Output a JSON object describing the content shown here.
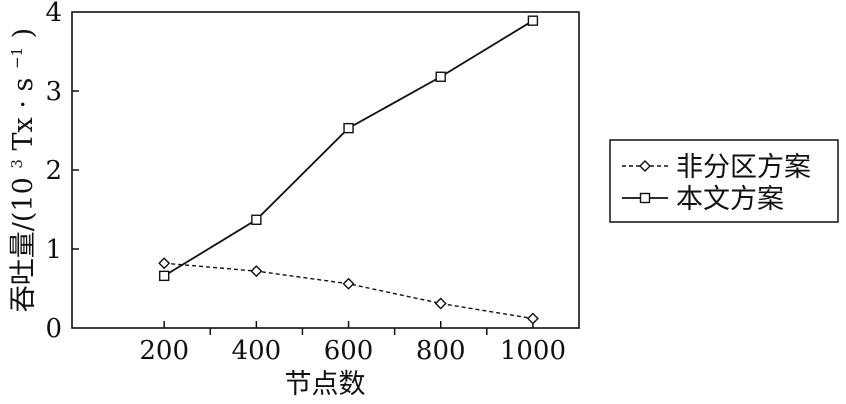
{
  "chart_data": {
    "type": "line",
    "x": [
      200,
      400,
      600,
      800,
      1000
    ],
    "xticks": [
      "200",
      "400",
      "600",
      "800",
      "1000"
    ],
    "yticks": [
      "0",
      "1",
      "2",
      "3",
      "4"
    ],
    "xlim": [
      0,
      1100
    ],
    "ylim": [
      0,
      4
    ],
    "xlabel": "节点数",
    "ylabel_main": "吞吐量/(10",
    "ylabel_sup": "3",
    "ylabel_mid": "Tx · s",
    "ylabel_sup2": "−1",
    "ylabel_end": ")",
    "grid": false,
    "legend_position": "outside-right",
    "series": [
      {
        "name": "非分区方案",
        "values": [
          0.82,
          0.72,
          0.56,
          0.31,
          0.12
        ],
        "marker": "diamond",
        "line_style": "dashed",
        "color": "#111111"
      },
      {
        "name": "本文方案",
        "values": [
          0.66,
          1.37,
          2.53,
          3.18,
          3.89
        ],
        "marker": "square",
        "line_style": "solid",
        "color": "#111111"
      }
    ]
  }
}
